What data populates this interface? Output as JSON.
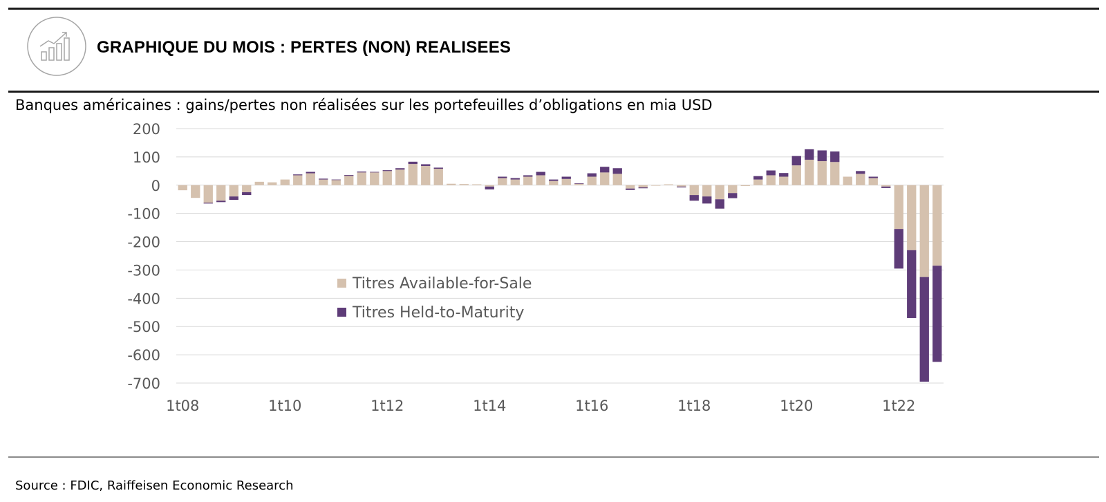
{
  "header": {
    "icon": "chart-growth-icon",
    "title": "GRAPHIQUE DU MOIS : PERTES (NON) REALISEES"
  },
  "source": "Source : FDIC, Raiffeisen Economic Research",
  "colors": {
    "afs": "#D5C1AE",
    "htm": "#5E3C78",
    "grid": "#D9D9D9",
    "text": "#595959"
  },
  "chart_data": {
    "type": "bar",
    "stacked": true,
    "title": "Banques américaines : gains/pertes non réalisées sur les portefeuilles d’obligations en mia USD",
    "ylim": [
      -700,
      200
    ],
    "y_ticks": [
      200,
      100,
      0,
      -100,
      -200,
      -300,
      -400,
      -500,
      -600,
      -700
    ],
    "grid": true,
    "legend_position": "center-left",
    "x_tick_labels": [
      {
        "label": "1t08",
        "index": 0
      },
      {
        "label": "1t10",
        "index": 8
      },
      {
        "label": "1t12",
        "index": 16
      },
      {
        "label": "1t14",
        "index": 24
      },
      {
        "label": "1t16",
        "index": 32
      },
      {
        "label": "1t18",
        "index": 40
      },
      {
        "label": "1t20",
        "index": 48
      },
      {
        "label": "1t22",
        "index": 56
      }
    ],
    "series": [
      {
        "name": "Titres Available-for-Sale",
        "color": "#D5C1AE",
        "values": [
          -18,
          -45,
          -62,
          -55,
          -40,
          -25,
          12,
          10,
          20,
          35,
          42,
          20,
          18,
          33,
          45,
          45,
          50,
          55,
          75,
          68,
          58,
          5,
          4,
          3,
          -5,
          25,
          20,
          30,
          35,
          15,
          22,
          5,
          30,
          45,
          40,
          -12,
          -8,
          -2,
          3,
          -5,
          -35,
          -40,
          -50,
          -28,
          -3,
          20,
          35,
          30,
          70,
          90,
          85,
          82,
          30,
          40,
          25,
          -5,
          -155,
          -230,
          -325,
          -285
        ]
      },
      {
        "name": "Titres Held-to-Maturity",
        "color": "#5E3C78",
        "values": [
          0,
          0,
          -3,
          -5,
          -12,
          -10,
          0,
          0,
          0,
          3,
          5,
          3,
          2,
          3,
          3,
          2,
          3,
          5,
          8,
          6,
          4,
          0,
          0,
          0,
          -10,
          5,
          5,
          5,
          12,
          5,
          8,
          2,
          12,
          20,
          20,
          -5,
          -3,
          0,
          0,
          -3,
          -20,
          -25,
          -33,
          -18,
          0,
          12,
          17,
          13,
          33,
          37,
          38,
          37,
          0,
          10,
          5,
          -5,
          -140,
          -240,
          -370,
          -340
        ]
      }
    ]
  }
}
